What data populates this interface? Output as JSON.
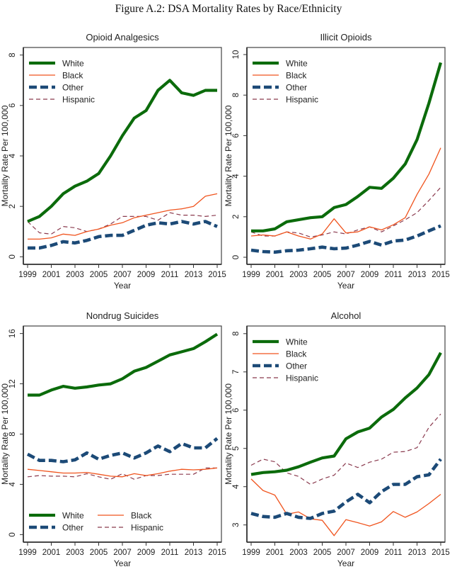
{
  "figure": {
    "title": "Figure A.2: DSA Mortality Rates by Race/Ethnicity"
  },
  "series_styles": {
    "White": {
      "color": "#0b6b0b",
      "style": "solid-thick"
    },
    "Black": {
      "color": "#f0541e",
      "style": "solid-thin"
    },
    "Other": {
      "color": "#1c4a77",
      "style": "dash-thick"
    },
    "Hispanic": {
      "color": "#8a3a4e",
      "style": "dash-thin"
    }
  },
  "chart_data": [
    {
      "type": "line",
      "title": "Opioid Analgesics",
      "xlabel": "Year",
      "ylabel": "Mortality Rate Per 100,000",
      "x": [
        1999,
        2000,
        2001,
        2002,
        2003,
        2004,
        2005,
        2006,
        2007,
        2008,
        2009,
        2010,
        2011,
        2012,
        2013,
        2014,
        2015
      ],
      "xticks": [
        "1999",
        "2001",
        "2003",
        "2005",
        "2007",
        "2009",
        "2011",
        "2013",
        "2015"
      ],
      "yticks": [
        "0",
        "2",
        "4",
        "6",
        "8"
      ],
      "ylim": [
        -0.3,
        8.3
      ],
      "legend": {
        "position": "top-left",
        "columns": 1,
        "entries": [
          "White",
          "Black",
          "Other",
          "Hispanic"
        ]
      },
      "series": [
        {
          "name": "White",
          "values": [
            1.4,
            1.6,
            2.0,
            2.5,
            2.8,
            3.0,
            3.3,
            4.0,
            4.8,
            5.5,
            5.8,
            6.6,
            7.0,
            6.5,
            6.4,
            6.6,
            6.6
          ]
        },
        {
          "name": "Black",
          "values": [
            0.7,
            0.7,
            0.75,
            0.9,
            0.85,
            1.0,
            1.1,
            1.25,
            1.35,
            1.55,
            1.65,
            1.75,
            1.85,
            1.9,
            2.0,
            2.4,
            2.5
          ]
        },
        {
          "name": "Other",
          "values": [
            0.35,
            0.35,
            0.45,
            0.6,
            0.55,
            0.65,
            0.8,
            0.85,
            0.85,
            1.05,
            1.25,
            1.35,
            1.3,
            1.4,
            1.3,
            1.4,
            1.2
          ]
        },
        {
          "name": "Hispanic",
          "values": [
            1.4,
            0.95,
            0.9,
            1.2,
            1.15,
            1.0,
            1.1,
            1.3,
            1.6,
            1.6,
            1.6,
            1.45,
            1.75,
            1.65,
            1.65,
            1.6,
            1.65
          ]
        }
      ]
    },
    {
      "type": "line",
      "title": "Illicit Opioids",
      "xlabel": "Year",
      "ylabel": "Mortality Rate Per 100,000",
      "x": [
        1999,
        2000,
        2001,
        2002,
        2003,
        2004,
        2005,
        2006,
        2007,
        2008,
        2009,
        2010,
        2011,
        2012,
        2013,
        2014,
        2015
      ],
      "xticks": [
        "1999",
        "2001",
        "2003",
        "2005",
        "2007",
        "2009",
        "2011",
        "2013",
        "2015"
      ],
      "yticks": [
        "0",
        "2",
        "4",
        "6",
        "8",
        "10"
      ],
      "ylim": [
        -0.35,
        10.35
      ],
      "legend": {
        "position": "top-left",
        "columns": 1,
        "entries": [
          "White",
          "Black",
          "Other",
          "Hispanic"
        ]
      },
      "series": [
        {
          "name": "White",
          "values": [
            1.3,
            1.3,
            1.4,
            1.75,
            1.85,
            1.95,
            2.0,
            2.45,
            2.6,
            3.0,
            3.45,
            3.4,
            3.9,
            4.6,
            5.8,
            7.6,
            9.6
          ]
        },
        {
          "name": "Black",
          "values": [
            1.05,
            1.1,
            1.05,
            1.25,
            1.05,
            0.9,
            1.15,
            1.9,
            1.2,
            1.25,
            1.5,
            1.35,
            1.6,
            1.95,
            3.1,
            4.1,
            5.4
          ]
        },
        {
          "name": "Other",
          "values": [
            0.35,
            0.28,
            0.25,
            0.32,
            0.35,
            0.42,
            0.5,
            0.42,
            0.45,
            0.6,
            0.78,
            0.6,
            0.8,
            0.85,
            1.05,
            1.3,
            1.55
          ]
        },
        {
          "name": "Hispanic",
          "values": [
            1.25,
            1.05,
            1.05,
            1.25,
            1.2,
            1.0,
            1.1,
            1.25,
            1.15,
            1.35,
            1.5,
            1.25,
            1.55,
            1.85,
            2.2,
            2.8,
            3.45
          ]
        }
      ]
    },
    {
      "type": "line",
      "title": "Nondrug Suicides",
      "xlabel": "Year",
      "ylabel": "Mortality Rate Per 100,000",
      "x": [
        1999,
        2000,
        2001,
        2002,
        2003,
        2004,
        2005,
        2006,
        2007,
        2008,
        2009,
        2010,
        2011,
        2012,
        2013,
        2014,
        2015
      ],
      "xticks": [
        "1999",
        "2001",
        "2003",
        "2005",
        "2007",
        "2009",
        "2011",
        "2013",
        "2015"
      ],
      "yticks": [
        "0",
        "4",
        "8",
        "12",
        "16"
      ],
      "ylim": [
        -0.6,
        16.6
      ],
      "legend": {
        "position": "bottom-left",
        "columns": 2,
        "entries": [
          "White",
          "Black",
          "Other",
          "Hispanic"
        ]
      },
      "series": [
        {
          "name": "White",
          "values": [
            11.1,
            11.1,
            11.5,
            11.8,
            11.65,
            11.75,
            11.9,
            12.0,
            12.4,
            13.0,
            13.3,
            13.8,
            14.3,
            14.55,
            14.8,
            15.35,
            15.95
          ]
        },
        {
          "name": "Black",
          "values": [
            5.2,
            5.1,
            5.0,
            4.9,
            4.9,
            4.95,
            4.8,
            4.65,
            4.6,
            4.85,
            4.7,
            4.85,
            5.05,
            5.2,
            5.15,
            5.2,
            5.3
          ]
        },
        {
          "name": "Other",
          "values": [
            6.4,
            5.9,
            5.9,
            5.8,
            5.95,
            6.5,
            6.0,
            6.3,
            6.5,
            6.1,
            6.5,
            7.05,
            6.6,
            7.25,
            6.9,
            6.9,
            7.65
          ]
        },
        {
          "name": "Hispanic",
          "values": [
            4.6,
            4.7,
            4.65,
            4.65,
            4.6,
            4.85,
            4.6,
            4.4,
            4.85,
            4.4,
            4.7,
            4.7,
            4.8,
            4.8,
            4.8,
            5.3,
            5.3
          ]
        }
      ]
    },
    {
      "type": "line",
      "title": "Alcohol",
      "xlabel": "Year",
      "ylabel": "Mortality Rate Per 100,000",
      "x": [
        1999,
        2000,
        2001,
        2002,
        2003,
        2004,
        2005,
        2006,
        2007,
        2008,
        2009,
        2010,
        2011,
        2012,
        2013,
        2014,
        2015
      ],
      "xticks": [
        "1999",
        "2001",
        "2003",
        "2005",
        "2007",
        "2009",
        "2011",
        "2013",
        "2015"
      ],
      "yticks": [
        "3",
        "4",
        "5",
        "6",
        "7",
        "8"
      ],
      "ylim": [
        2.55,
        8.2
      ],
      "legend": {
        "position": "top-left",
        "columns": 1,
        "entries": [
          "White",
          "Black",
          "Other",
          "Hispanic"
        ]
      },
      "series": [
        {
          "name": "White",
          "values": [
            4.32,
            4.37,
            4.39,
            4.43,
            4.52,
            4.64,
            4.75,
            4.8,
            5.25,
            5.43,
            5.53,
            5.82,
            6.02,
            6.32,
            6.58,
            6.93,
            7.5
          ]
        },
        {
          "name": "Black",
          "values": [
            4.2,
            3.9,
            3.78,
            3.28,
            3.34,
            3.16,
            3.12,
            2.72,
            3.14,
            3.06,
            2.97,
            3.08,
            3.35,
            3.2,
            3.34,
            3.56,
            3.8
          ]
        },
        {
          "name": "Other",
          "values": [
            3.3,
            3.22,
            3.2,
            3.3,
            3.2,
            3.17,
            3.3,
            3.36,
            3.6,
            3.8,
            3.58,
            3.87,
            4.06,
            4.06,
            4.26,
            4.31,
            4.72
          ]
        },
        {
          "name": "Hispanic",
          "values": [
            4.56,
            4.72,
            4.65,
            4.36,
            4.27,
            4.06,
            4.2,
            4.3,
            4.62,
            4.5,
            4.64,
            4.72,
            4.9,
            4.92,
            5.02,
            5.55,
            5.9
          ]
        }
      ]
    }
  ]
}
